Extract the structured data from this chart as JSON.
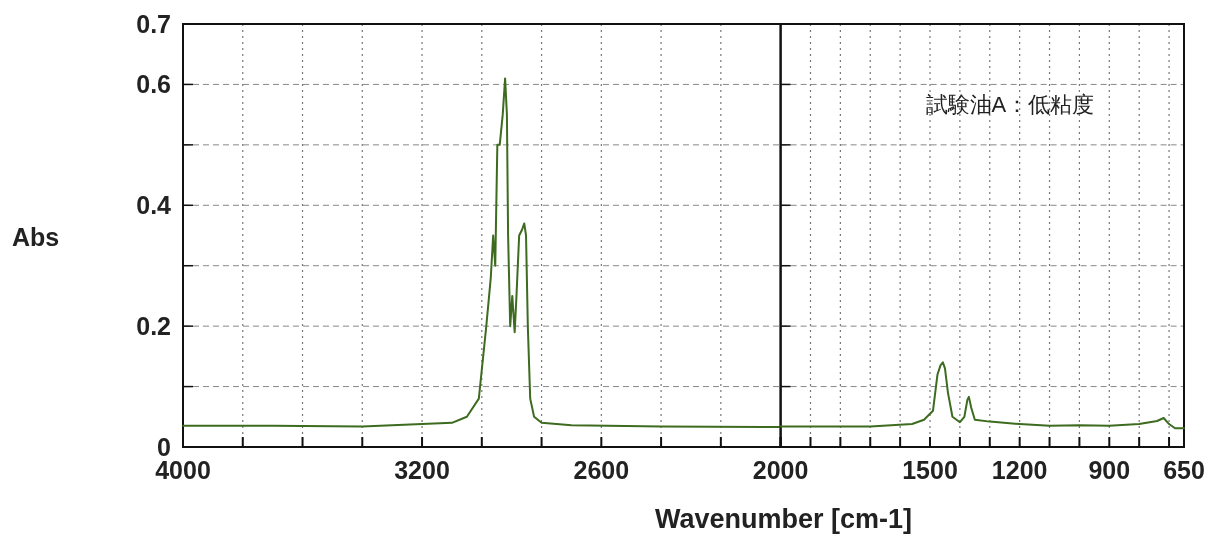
{
  "chart_data": [
    {
      "type": "line",
      "ylabel": "Abs",
      "xlim": [
        4000,
        2000
      ],
      "ylim": [
        0,
        0.7
      ],
      "grid": true,
      "xticks": [
        4000,
        {
          "value": 3800,
          "label": null
        },
        {
          "value": 3600,
          "label": null
        },
        {
          "value": 3400,
          "label": null
        },
        3200,
        {
          "value": 3000,
          "label": null
        },
        {
          "value": 2800,
          "label": null
        },
        2600,
        {
          "value": 2400,
          "label": null
        },
        {
          "value": 2200,
          "label": null
        },
        2000
      ],
      "yticks": [
        0,
        {
          "value": 0.1,
          "label": null
        },
        0.2,
        {
          "value": 0.3,
          "label": null
        },
        0.4,
        {
          "value": 0.5,
          "label": null
        },
        0.6,
        0.7
      ],
      "x": [
        4000,
        3700,
        3400,
        3100,
        3050,
        3010,
        2985,
        2970,
        2962,
        2955,
        2948,
        2940,
        2930,
        2922,
        2916,
        2912,
        2905,
        2898,
        2890,
        2884,
        2875,
        2865,
        2858,
        2852,
        2846,
        2838,
        2825,
        2800,
        2700,
        2400,
        2000
      ],
      "series": [
        {
          "color": "#3d6b1f",
          "values": [
            0.035,
            0.035,
            0.034,
            0.04,
            0.05,
            0.08,
            0.2,
            0.28,
            0.35,
            0.3,
            0.5,
            0.5,
            0.55,
            0.61,
            0.55,
            0.35,
            0.2,
            0.25,
            0.19,
            0.25,
            0.35,
            0.36,
            0.37,
            0.35,
            0.2,
            0.08,
            0.05,
            0.04,
            0.036,
            0.034,
            0.033
          ]
        }
      ]
    },
    {
      "type": "line",
      "xlabel": "Wavenumber [cm-1]",
      "tick_labels": "x",
      "xlim": [
        2000,
        650
      ],
      "ylim": [
        0,
        0.7
      ],
      "grid": true,
      "annotations": [
        "試験油A：低粘度"
      ],
      "xticks": [
        {
          "value": 2000,
          "label": null
        },
        {
          "value": 1900,
          "label": null
        },
        {
          "value": 1800,
          "label": null
        },
        {
          "value": 1700,
          "label": null
        },
        {
          "value": 1600,
          "label": null
        },
        1500,
        {
          "value": 1400,
          "label": null
        },
        {
          "value": 1300,
          "label": null
        },
        1200,
        {
          "value": 1100,
          "label": null
        },
        {
          "value": 1000,
          "label": null
        },
        900,
        {
          "value": 800,
          "label": null
        },
        {
          "value": 700,
          "label": null
        },
        650
      ],
      "yticks": [
        0,
        {
          "value": 0.1,
          "label": null
        },
        {
          "value": 0.2,
          "label": null
        },
        {
          "value": 0.3,
          "label": null
        },
        {
          "value": 0.4,
          "label": null
        },
        {
          "value": 0.5,
          "label": null
        },
        {
          "value": 0.6,
          "label": null
        },
        {
          "value": 0.7,
          "label": null
        }
      ],
      "x": [
        2000,
        1700,
        1560,
        1520,
        1490,
        1475,
        1465,
        1457,
        1450,
        1440,
        1425,
        1400,
        1385,
        1375,
        1370,
        1362,
        1350,
        1300,
        1200,
        1100,
        1000,
        900,
        800,
        740,
        718,
        700,
        680,
        650
      ],
      "series": [
        {
          "color": "#3d6b1f",
          "values": [
            0.034,
            0.034,
            0.038,
            0.045,
            0.06,
            0.12,
            0.135,
            0.14,
            0.13,
            0.09,
            0.05,
            0.041,
            0.05,
            0.078,
            0.083,
            0.065,
            0.045,
            0.042,
            0.038,
            0.035,
            0.036,
            0.035,
            0.038,
            0.043,
            0.048,
            0.038,
            0.031,
            0.031
          ]
        }
      ]
    }
  ]
}
